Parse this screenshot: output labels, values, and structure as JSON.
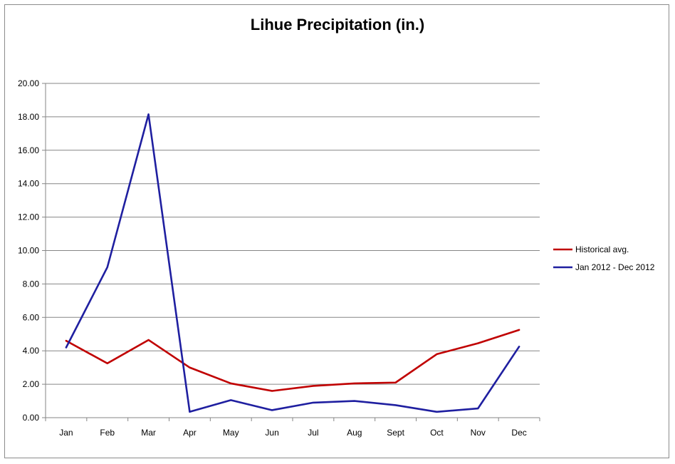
{
  "chart_data": {
    "type": "line",
    "title": "Lihue Precipitation (in.)",
    "xlabel": "",
    "ylabel": "",
    "categories": [
      "Jan",
      "Feb",
      "Mar",
      "Apr",
      "May",
      "Jun",
      "Jul",
      "Aug",
      "Sept",
      "Oct",
      "Nov",
      "Dec"
    ],
    "ylim": [
      0,
      20
    ],
    "yticks": [
      "0.00",
      "2.00",
      "4.00",
      "6.00",
      "8.00",
      "10.00",
      "12.00",
      "14.00",
      "16.00",
      "18.00",
      "20.00"
    ],
    "grid": true,
    "legend_position": "right",
    "series": [
      {
        "name": "Historical avg.",
        "color": "#c00000",
        "values": [
          4.6,
          3.25,
          4.65,
          3.0,
          2.05,
          1.6,
          1.9,
          2.05,
          2.1,
          3.8,
          4.45,
          5.25
        ]
      },
      {
        "name": "Jan 2012 - Dec 2012",
        "color": "#1f1fa0",
        "values": [
          4.2,
          9.0,
          18.15,
          0.35,
          1.05,
          0.45,
          0.9,
          1.0,
          0.75,
          0.35,
          0.55,
          4.25
        ]
      }
    ]
  }
}
